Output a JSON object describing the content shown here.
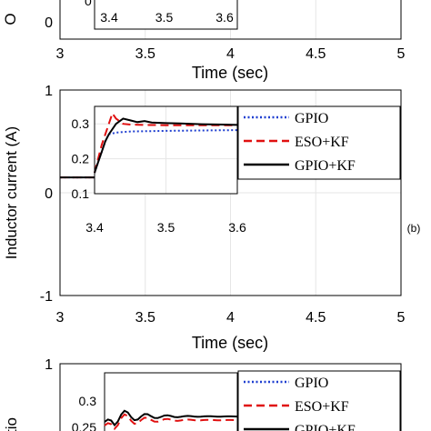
{
  "chart_data": [
    {
      "type": "line",
      "panel": "top (cropped)",
      "ylabel": "O",
      "xlabel": "Time (sec)",
      "xlim": [
        3,
        5
      ],
      "xticks": [
        "3",
        "3.5",
        "4",
        "4.5",
        "5"
      ],
      "yticks": [
        "0"
      ],
      "inset_xticks": [
        "3.4",
        "3.5",
        "3.6"
      ],
      "inset_partial_ytick": "0",
      "grid": true
    },
    {
      "type": "line",
      "panel": "middle",
      "panel_label": "(b)",
      "ylabel": "Inductor current (A)",
      "xlabel": "Time (sec)",
      "xlim": [
        3,
        5
      ],
      "ylim": [
        -1,
        1
      ],
      "xticks": [
        "3",
        "3.5",
        "4",
        "4.5",
        "5"
      ],
      "yticks": [
        "1",
        "0",
        "-1"
      ],
      "grid": true,
      "legend": {
        "position": "top-right",
        "entries": [
          {
            "name": "GPIO",
            "color": "#1f3fd0",
            "style": "dotted"
          },
          {
            "name": "ESO+KF",
            "color": "#e01010",
            "style": "dashed"
          },
          {
            "name": "GPIO+KF",
            "color": "#000000",
            "style": "solid"
          }
        ]
      },
      "series_main": {
        "x": [
          3.0,
          3.41,
          3.42,
          3.43,
          3.44,
          3.45,
          3.47,
          3.5,
          4.0,
          5.0
        ],
        "y": [
          0.15,
          0.15,
          0.22,
          0.31,
          0.33,
          0.3,
          0.29,
          0.29,
          0.29,
          0.29
        ]
      },
      "inset": {
        "xlim": [
          3.4,
          3.6
        ],
        "ylim": [
          0.1,
          0.35
        ],
        "xticks": [
          "3.4",
          "3.5",
          "3.6"
        ],
        "yticks": [
          "0.3",
          "0.2",
          "0.1"
        ],
        "series": [
          {
            "name": "GPIO",
            "color": "#1f3fd0",
            "x": [
              3.4,
              3.405,
              3.41,
              3.415,
              3.42,
              3.43,
              3.45,
              3.5,
              3.55,
              3.6
            ],
            "y": [
              0.16,
              0.19,
              0.22,
              0.25,
              0.27,
              0.275,
              0.278,
              0.28,
              0.281,
              0.282
            ]
          },
          {
            "name": "ESO+KF",
            "color": "#e01010",
            "x": [
              3.4,
              3.405,
              3.41,
              3.415,
              3.42,
              3.425,
              3.43,
              3.44,
              3.45,
              3.47,
              3.5,
              3.55,
              3.6
            ],
            "y": [
              0.16,
              0.2,
              0.24,
              0.27,
              0.3,
              0.33,
              0.315,
              0.3,
              0.298,
              0.297,
              0.296,
              0.296,
              0.296
            ]
          },
          {
            "name": "GPIO+KF",
            "color": "#000000",
            "x": [
              3.4,
              3.405,
              3.41,
              3.415,
              3.42,
              3.43,
              3.44,
              3.45,
              3.46,
              3.47,
              3.48,
              3.5,
              3.52,
              3.55,
              3.58,
              3.6
            ],
            "y": [
              0.16,
              0.19,
              0.22,
              0.25,
              0.27,
              0.3,
              0.315,
              0.31,
              0.305,
              0.308,
              0.304,
              0.302,
              0.301,
              0.299,
              0.298,
              0.297
            ]
          }
        ]
      }
    },
    {
      "type": "line",
      "panel": "bottom (cropped)",
      "ylabel": "tio",
      "yticks": [
        "1"
      ],
      "inset_yticks": [
        "0.3",
        "0.25"
      ],
      "legend": {
        "position": "top-right",
        "entries": [
          {
            "name": "GPIO",
            "color": "#1f3fd0",
            "style": "dotted"
          },
          {
            "name": "ESO+KF",
            "color": "#e01010",
            "style": "dashed"
          },
          {
            "name": "GPIO+KF",
            "color": "#000000",
            "style": "solid"
          }
        ]
      }
    }
  ]
}
